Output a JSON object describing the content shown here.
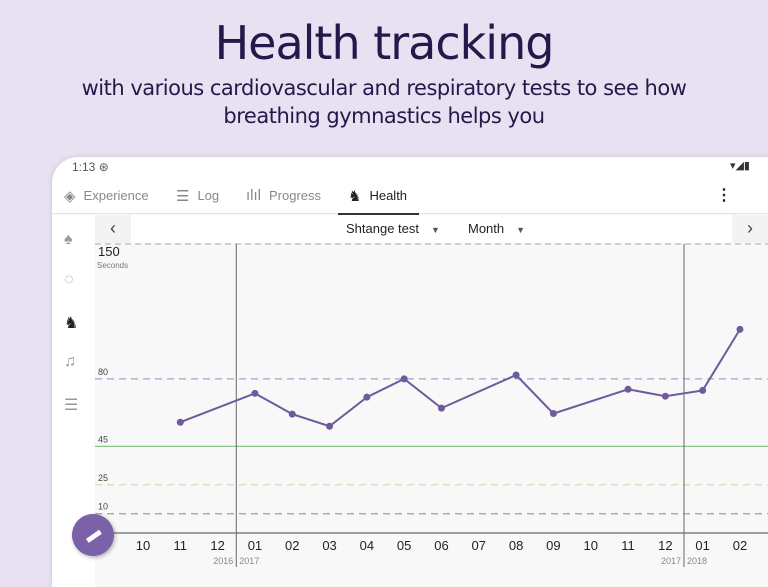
{
  "hero": {
    "title": "Health tracking",
    "subtitle_line1": "with various cardiovascular and respiratory tests to see how",
    "subtitle_line2": "breathing gymnastics helps you"
  },
  "status_bar": {
    "time": "1:13",
    "right_icons": "▾◢▮"
  },
  "tabs": [
    {
      "label": "Experience",
      "icon": "compass-icon"
    },
    {
      "label": "Log",
      "icon": "log-icon"
    },
    {
      "label": "Progress",
      "icon": "bar-chart-icon"
    },
    {
      "label": "Health",
      "icon": "heart-lungs-icon",
      "active": true
    }
  ],
  "sidebar": [
    "lungs-icon",
    "percent-timer-icon",
    "health-icon",
    "bell-icon",
    "sliders-icon"
  ],
  "toolbar": {
    "test": "Shtange test",
    "period": "Month"
  },
  "colors": {
    "accent": "#7b61a8",
    "line": "#6f5a9c"
  },
  "chart_data": {
    "type": "line",
    "ylabel": "Seconds",
    "ylim": [
      0,
      150
    ],
    "ymax_label": "150",
    "reference_lines": [
      {
        "value": 80,
        "label": "80",
        "color": "#8fa8d8",
        "style": "dashed"
      },
      {
        "value": 45,
        "label": "45",
        "color": "#7dbf7d",
        "style": "solid"
      },
      {
        "value": 25,
        "label": "25",
        "color": "#d8d8a0",
        "style": "dashed"
      },
      {
        "value": 10,
        "label": "10",
        "color": "#c09098",
        "style": "dashed"
      }
    ],
    "categories": [
      "10",
      "11",
      "12",
      "01",
      "02",
      "03",
      "04",
      "05",
      "06",
      "07",
      "08",
      "09",
      "10",
      "11",
      "12",
      "01",
      "02"
    ],
    "year_breaks": [
      {
        "after_index": 2,
        "left": "2016",
        "right": "2017"
      },
      {
        "after_index": 14,
        "left": "2017",
        "right": "2018"
      }
    ],
    "series": [
      {
        "name": "Shtange test",
        "values": [
          null,
          57.5,
          null,
          72.5,
          61.7,
          55.4,
          70.5,
          80,
          64.8,
          null,
          82,
          62,
          null,
          74.6,
          71,
          74,
          105.7
        ]
      }
    ]
  }
}
